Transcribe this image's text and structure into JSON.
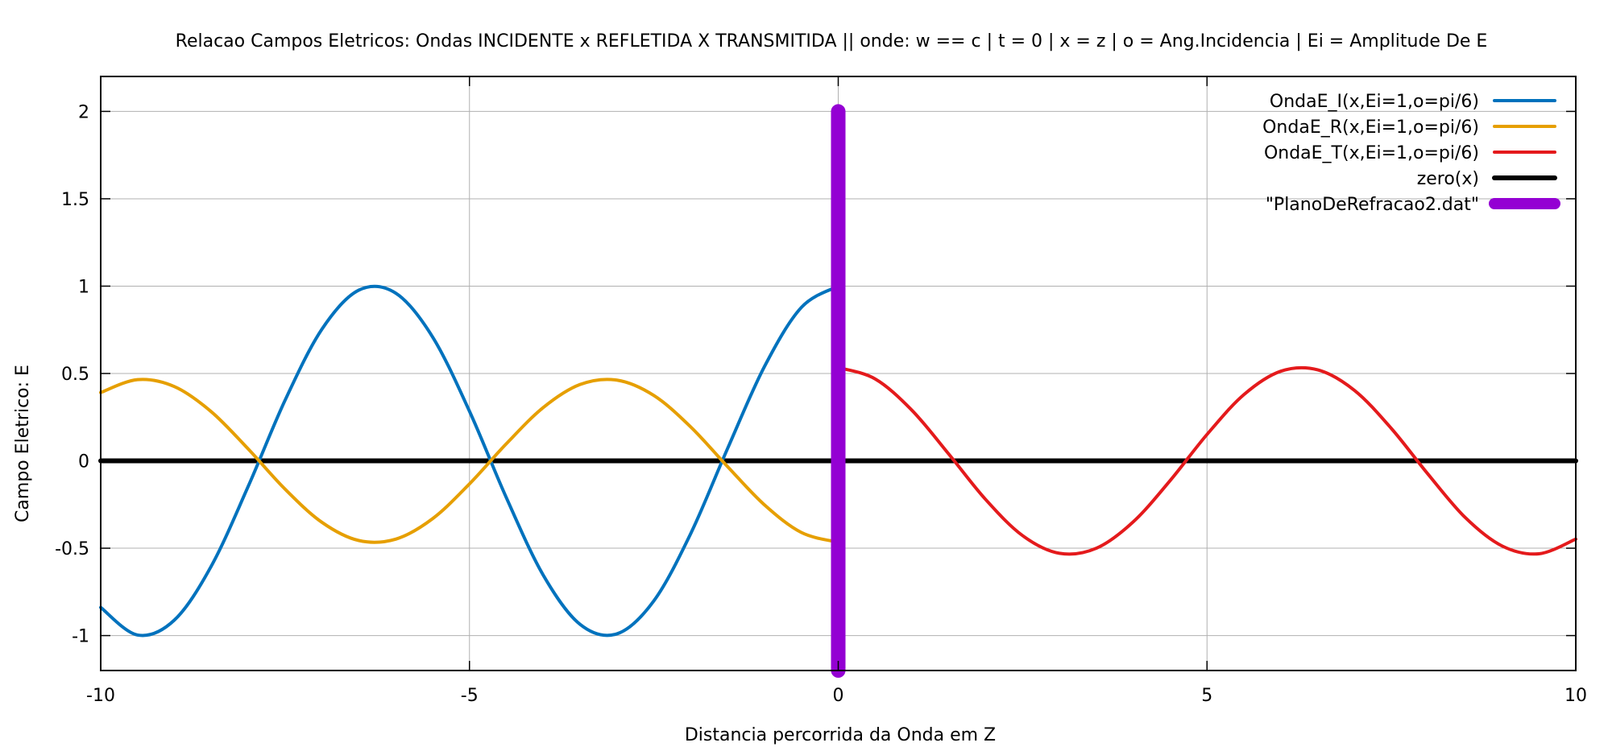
{
  "chart_data": {
    "type": "line",
    "title": "Relacao Campos Eletricos: Ondas INCIDENTE x REFLETIDA X TRANSMITIDA || onde: w == c | t = 0 | x = z | o = Ang.Incidencia | Ei = Amplitude De E",
    "xlabel": "Distancia percorrida da Onda em Z",
    "ylabel": "Campo Eletrico: E",
    "xlim": [
      -10,
      10
    ],
    "ylim": [
      -1.2,
      2.2
    ],
    "xticks": [
      -10,
      -5,
      0,
      5,
      10
    ],
    "xtick_labels": [
      "-10",
      "-5",
      "0",
      "5",
      "10"
    ],
    "yticks": [
      -1,
      -0.5,
      0,
      0.5,
      1,
      1.5,
      2
    ],
    "ytick_labels": [
      "-1",
      "-0.5",
      "0",
      "0.5",
      "1",
      "1.5",
      "2"
    ],
    "grid": true,
    "legend_position": "top-right",
    "series": [
      {
        "name": "OndaE_I(x,Ei=1,o=pi/6)",
        "color": "#0072bd",
        "x": [
          -10,
          -9.5,
          -9,
          -8.5,
          -8,
          -7.5,
          -7,
          -6.5,
          -6,
          -5.5,
          -5,
          -4.5,
          -4,
          -3.5,
          -3,
          -2.5,
          -2,
          -1.5,
          -1,
          -0.5,
          0
        ],
        "y": [
          -0.839,
          -0.997,
          -0.911,
          -0.602,
          -0.146,
          0.347,
          0.754,
          0.977,
          0.96,
          0.709,
          0.284,
          -0.211,
          -0.654,
          -0.936,
          -0.99,
          -0.801,
          -0.416,
          0.071,
          0.54,
          0.878,
          1.0
        ]
      },
      {
        "name": "OndaE_R(x,Ei=1,o=pi/6)",
        "color": "#e69f00",
        "x": [
          -10,
          -9.5,
          -9,
          -8.5,
          -8,
          -7.5,
          -7,
          -6.5,
          -6,
          -5.5,
          -5,
          -4.5,
          -4,
          -3.5,
          -3,
          -2.5,
          -2,
          -1.5,
          -1,
          -0.5,
          0
        ],
        "y": [
          0.391,
          0.465,
          0.425,
          0.281,
          0.068,
          -0.162,
          -0.352,
          -0.456,
          -0.448,
          -0.331,
          -0.132,
          0.098,
          0.305,
          0.437,
          0.462,
          0.374,
          0.194,
          -0.033,
          -0.252,
          -0.41,
          -0.466
        ]
      },
      {
        "name": "OndaE_T(x,Ei=1,o=pi/6)",
        "color": "#e41a1c",
        "x": [
          0,
          0.5,
          1,
          1.5,
          2,
          2.5,
          3,
          3.5,
          4,
          4.5,
          5,
          5.5,
          6,
          6.5,
          7,
          7.5,
          8,
          8.5,
          9,
          9.5,
          10
        ],
        "y": [
          0.534,
          0.469,
          0.289,
          0.038,
          -0.222,
          -0.428,
          -0.529,
          -0.5,
          -0.349,
          -0.113,
          0.151,
          0.379,
          0.513,
          0.521,
          0.403,
          0.185,
          -0.078,
          -0.324,
          -0.487,
          -0.532,
          -0.448
        ]
      },
      {
        "name": "zero(x)",
        "color": "#000000",
        "x": [
          -10,
          10
        ],
        "y": [
          0,
          0
        ]
      },
      {
        "name": "\"PlanoDeRefracao2.dat\"",
        "color": "#9400d3",
        "x": [
          0,
          0
        ],
        "y": [
          -1.2,
          2.0
        ]
      }
    ]
  }
}
